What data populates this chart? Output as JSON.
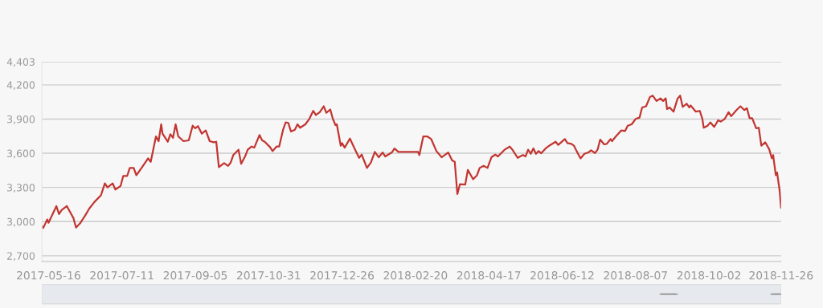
{
  "chart_data": {
    "type": "line",
    "xlim": [
      "2017-05-11",
      "2018-11-26"
    ],
    "xticks": [
      "2017-05-16",
      "2017-07-11",
      "2017-09-05",
      "2017-10-31",
      "2017-12-26",
      "2018-02-20",
      "2018-04-17",
      "2018-06-12",
      "2018-08-07",
      "2018-10-02",
      "2018-11-26"
    ],
    "ylim": [
      2650,
      4403
    ],
    "yticks": [
      {
        "value": 2700,
        "label": "2,700"
      },
      {
        "value": 3000,
        "label": "3,000"
      },
      {
        "value": 3300,
        "label": "3,300"
      },
      {
        "value": 3600,
        "label": "3,600"
      },
      {
        "value": 3900,
        "label": "3,900"
      },
      {
        "value": 4200,
        "label": "4,200"
      },
      {
        "value": 4403,
        "label": "4,403"
      }
    ],
    "grid": "y",
    "marker": "none",
    "line_style": "solid",
    "series": [
      {
        "color": "#c23531",
        "x": [
          "2017-05-11",
          "2017-05-12",
          "2017-05-15",
          "2017-05-16",
          "2017-05-22",
          "2017-05-24",
          "2017-05-26",
          "2017-05-30",
          "2017-06-01",
          "2017-06-04",
          "2017-06-06",
          "2017-06-09",
          "2017-06-13",
          "2017-06-16",
          "2017-06-20",
          "2017-06-25",
          "2017-06-28",
          "2017-06-30",
          "2017-07-04",
          "2017-07-06",
          "2017-07-10",
          "2017-07-12",
          "2017-07-15",
          "2017-07-17",
          "2017-07-20",
          "2017-07-22",
          "2017-07-26",
          "2017-07-31",
          "2017-08-02",
          "2017-08-06",
          "2017-08-08",
          "2017-08-10",
          "2017-08-11",
          "2017-08-15",
          "2017-08-17",
          "2017-08-19",
          "2017-08-21",
          "2017-08-23",
          "2017-08-27",
          "2017-08-31",
          "2017-09-03",
          "2017-09-05",
          "2017-09-07",
          "2017-09-10",
          "2017-09-13",
          "2017-09-16",
          "2017-09-19",
          "2017-09-21",
          "2017-09-23",
          "2017-09-27",
          "2017-09-30",
          "2017-10-02",
          "2017-10-04",
          "2017-10-08",
          "2017-10-10",
          "2017-10-13",
          "2017-10-15",
          "2017-10-18",
          "2017-10-20",
          "2017-10-24",
          "2017-10-26",
          "2017-10-28",
          "2017-11-01",
          "2017-11-03",
          "2017-11-06",
          "2017-11-08",
          "2017-11-11",
          "2017-11-13",
          "2017-11-15",
          "2017-11-17",
          "2017-11-20",
          "2017-11-22",
          "2017-11-24",
          "2017-11-28",
          "2017-12-01",
          "2017-12-04",
          "2017-12-06",
          "2017-12-09",
          "2017-12-12",
          "2017-12-14",
          "2017-12-17",
          "2017-12-19",
          "2017-12-21",
          "2017-12-22",
          "2017-12-25",
          "2017-12-26",
          "2017-12-28",
          "2018-01-01",
          "2018-01-05",
          "2018-01-08",
          "2018-01-10",
          "2018-01-14",
          "2018-01-17",
          "2018-01-20",
          "2018-01-23",
          "2018-01-26",
          "2018-01-28",
          "2018-02-02",
          "2018-02-04",
          "2018-02-07",
          "2018-02-22",
          "2018-02-23",
          "2018-02-26",
          "2018-03-01",
          "2018-03-04",
          "2018-03-08",
          "2018-03-12",
          "2018-03-17",
          "2018-03-20",
          "2018-03-22",
          "2018-03-24",
          "2018-03-26",
          "2018-03-30",
          "2018-04-01",
          "2018-04-05",
          "2018-04-08",
          "2018-04-10",
          "2018-04-13",
          "2018-04-16",
          "2018-04-19",
          "2018-04-22",
          "2018-04-24",
          "2018-04-29",
          "2018-05-03",
          "2018-05-05",
          "2018-05-09",
          "2018-05-13",
          "2018-05-15",
          "2018-05-17",
          "2018-05-19",
          "2018-05-21",
          "2018-05-23",
          "2018-05-25",
          "2018-05-27",
          "2018-05-31",
          "2018-06-03",
          "2018-06-07",
          "2018-06-09",
          "2018-06-14",
          "2018-06-16",
          "2018-06-19",
          "2018-06-21",
          "2018-06-23",
          "2018-06-26",
          "2018-06-29",
          "2018-07-02",
          "2018-07-04",
          "2018-07-07",
          "2018-07-09",
          "2018-07-11",
          "2018-07-14",
          "2018-07-16",
          "2018-07-19",
          "2018-07-20",
          "2018-07-23",
          "2018-07-27",
          "2018-07-30",
          "2018-08-01",
          "2018-08-04",
          "2018-08-07",
          "2018-08-10",
          "2018-08-12",
          "2018-08-15",
          "2018-08-18",
          "2018-08-20",
          "2018-08-23",
          "2018-08-26",
          "2018-08-28",
          "2018-08-30",
          "2018-08-31",
          "2018-09-02",
          "2018-09-05",
          "2018-09-08",
          "2018-09-10",
          "2018-09-12",
          "2018-09-15",
          "2018-09-17",
          "2018-09-18",
          "2018-09-22",
          "2018-09-25",
          "2018-09-27",
          "2018-09-28",
          "2018-10-01",
          "2018-10-03",
          "2018-10-06",
          "2018-10-09",
          "2018-10-11",
          "2018-10-14",
          "2018-10-17",
          "2018-10-19",
          "2018-10-23",
          "2018-10-26",
          "2018-10-29",
          "2018-10-31",
          "2018-11-02",
          "2018-11-04",
          "2018-11-07",
          "2018-11-09",
          "2018-11-11",
          "2018-11-14",
          "2018-11-17",
          "2018-11-19",
          "2018-11-20",
          "2018-11-22",
          "2018-11-23",
          "2018-11-25",
          "2018-11-26"
        ],
        "values": [
          2960,
          2945,
          3019,
          2990,
          3136,
          3066,
          3101,
          3136,
          3094,
          3031,
          2948,
          2984,
          3054,
          3113,
          3172,
          3231,
          3336,
          3301,
          3336,
          3282,
          3313,
          3400,
          3400,
          3471,
          3471,
          3407,
          3471,
          3555,
          3525,
          3748,
          3706,
          3854,
          3772,
          3701,
          3767,
          3736,
          3854,
          3748,
          3706,
          3713,
          3842,
          3819,
          3838,
          3772,
          3800,
          3706,
          3696,
          3701,
          3478,
          3513,
          3489,
          3518,
          3584,
          3631,
          3508,
          3572,
          3631,
          3659,
          3649,
          3760,
          3713,
          3701,
          3654,
          3619,
          3659,
          3659,
          3807,
          3871,
          3866,
          3791,
          3807,
          3854,
          3824,
          3854,
          3901,
          3972,
          3936,
          3960,
          4012,
          3955,
          3984,
          3901,
          3847,
          3854,
          3666,
          3689,
          3649,
          3729,
          3631,
          3560,
          3588,
          3471,
          3518,
          3612,
          3565,
          3607,
          3572,
          3607,
          3642,
          3612,
          3612,
          3584,
          3748,
          3748,
          3725,
          3619,
          3565,
          3607,
          3537,
          3525,
          3242,
          3329,
          3325,
          3454,
          3372,
          3407,
          3471,
          3489,
          3471,
          3565,
          3588,
          3572,
          3631,
          3659,
          3631,
          3560,
          3584,
          3572,
          3631,
          3595,
          3642,
          3595,
          3619,
          3600,
          3649,
          3673,
          3701,
          3673,
          3725,
          3689,
          3682,
          3666,
          3619,
          3555,
          3595,
          3607,
          3626,
          3602,
          3631,
          3720,
          3678,
          3682,
          3725,
          3706,
          3748,
          3800,
          3795,
          3842,
          3854,
          3901,
          3913,
          4002,
          4012,
          4094,
          4106,
          4059,
          4082,
          4059,
          4082,
          3988,
          4002,
          3965,
          4078,
          4106,
          4007,
          4035,
          4002,
          4019,
          3965,
          3972,
          3901,
          3824,
          3842,
          3871,
          3831,
          3889,
          3878,
          3901,
          3960,
          3925,
          3979,
          4012,
          3979,
          3995,
          3908,
          3908,
          3819,
          3824,
          3666,
          3696,
          3635,
          3555,
          3584,
          3407,
          3431,
          3266,
          3120
        ]
      }
    ]
  }
}
